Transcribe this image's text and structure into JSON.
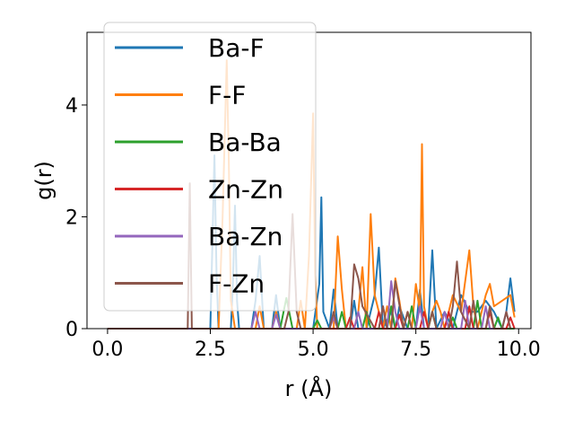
{
  "chart_data": {
    "type": "line",
    "xlabel": "r (Å)",
    "ylabel": "g(r)",
    "xlim": [
      -0.5,
      10.3
    ],
    "ylim": [
      0,
      5.3
    ],
    "xticks": [
      0.0,
      2.5,
      5.0,
      7.5,
      10.0
    ],
    "xtick_labels": [
      "0.0",
      "2.5",
      "5.0",
      "7.5",
      "10.0"
    ],
    "yticks": [
      0,
      2,
      4
    ],
    "ytick_labels": [
      "0",
      "2",
      "4"
    ],
    "grid": false,
    "legend_position": "top-left",
    "series": [
      {
        "name": "Ba-F",
        "color": "#1f77b4",
        "x": [
          0,
          2.5,
          2.55,
          2.6,
          2.65,
          2.7,
          2.75,
          2.8,
          2.85,
          2.9,
          3.0,
          3.05,
          3.1,
          3.15,
          3.2,
          3.5,
          3.6,
          3.7,
          3.8,
          4.0,
          4.1,
          4.2,
          4.8,
          5.0,
          5.15,
          5.2,
          5.25,
          5.4,
          5.5,
          5.6,
          5.9,
          6.0,
          6.1,
          6.3,
          6.5,
          6.6,
          6.7,
          6.9,
          7.0,
          7.1,
          7.3,
          7.5,
          7.6,
          7.7,
          7.8,
          7.9,
          8.0,
          8.2,
          8.4,
          8.6,
          8.8,
          9.0,
          9.2,
          9.4,
          9.6,
          9.7,
          9.8,
          9.9
        ],
        "y": [
          0,
          0,
          1.5,
          3.1,
          1.0,
          0,
          0,
          0,
          0,
          0,
          0,
          0.8,
          2.2,
          0.5,
          0,
          0,
          0.5,
          1.3,
          0,
          0,
          0.6,
          0,
          0,
          0,
          0.8,
          2.35,
          0.3,
          0,
          0.7,
          0,
          0,
          0.5,
          0,
          0,
          0.6,
          1.45,
          0,
          0.3,
          0,
          0.4,
          0,
          0,
          0.7,
          0,
          0,
          1.4,
          0,
          0.3,
          0,
          0.6,
          0.3,
          0.3,
          0.5,
          0.3,
          0,
          0.3,
          0.9,
          0.3
        ]
      },
      {
        "name": "F-F",
        "color": "#ff7f0e",
        "x": [
          0,
          2.6,
          2.7,
          2.8,
          2.9,
          2.95,
          3.0,
          3.1,
          3.2,
          3.6,
          3.7,
          3.8,
          4.0,
          4.1,
          4.2,
          4.5,
          4.6,
          4.7,
          4.8,
          4.9,
          5.0,
          5.05,
          5.1,
          5.3,
          5.5,
          5.6,
          5.7,
          5.8,
          6.0,
          6.1,
          6.2,
          6.3,
          6.4,
          6.5,
          6.6,
          6.7,
          6.8,
          6.9,
          7.0,
          7.1,
          7.2,
          7.3,
          7.4,
          7.5,
          7.6,
          7.65,
          7.7,
          7.8,
          7.9,
          8.0,
          8.1,
          8.2,
          8.4,
          8.6,
          8.8,
          8.9,
          9.0,
          9.2,
          9.3,
          9.4,
          9.6,
          9.8,
          9.9
        ],
        "y": [
          0,
          0,
          0,
          2.0,
          4.8,
          3.0,
          0.5,
          0,
          0,
          0,
          0.4,
          0,
          0,
          0.3,
          0,
          0,
          0,
          0.5,
          0,
          1.3,
          3.85,
          1.0,
          0,
          0,
          0,
          1.65,
          0.7,
          0,
          0,
          0.3,
          1.1,
          0,
          2.05,
          0.6,
          0.3,
          0,
          0.4,
          0,
          0.9,
          0.5,
          0,
          0.3,
          0,
          0.8,
          0.3,
          3.3,
          0.4,
          0,
          0.3,
          0.5,
          0.3,
          0,
          0.6,
          0.3,
          1.4,
          0.4,
          0,
          0.6,
          0.8,
          0.4,
          0.5,
          0.6,
          0.2
        ]
      },
      {
        "name": "Ba-Ba",
        "color": "#2ca02c",
        "x": [
          0,
          4.2,
          4.35,
          4.5,
          5.0,
          5.1,
          5.2,
          5.6,
          5.7,
          5.8,
          6.2,
          6.3,
          6.4,
          6.8,
          6.9,
          7.0,
          7.3,
          7.4,
          7.5,
          7.8,
          7.9,
          8.0,
          8.3,
          8.4,
          8.5,
          8.9,
          9.0,
          9.1,
          9.4,
          9.5,
          9.6,
          9.9
        ],
        "y": [
          0,
          0,
          0.55,
          0,
          0,
          0.15,
          0,
          0,
          0.3,
          0,
          0,
          0.3,
          0,
          0,
          0.4,
          0,
          0,
          0.4,
          0,
          0,
          0.3,
          0,
          0,
          0.2,
          0,
          0,
          0.5,
          0,
          0,
          0.2,
          0,
          0
        ]
      },
      {
        "name": "Zn-Zn",
        "color": "#d62728",
        "x": [
          0,
          5.8,
          5.9,
          6.0,
          6.5,
          6.6,
          6.7,
          7.0,
          7.1,
          7.2,
          7.6,
          7.7,
          7.8,
          8.2,
          8.3,
          8.4,
          8.7,
          8.8,
          8.9,
          9.2,
          9.3,
          9.4,
          9.7,
          9.8,
          9.9
        ],
        "y": [
          0,
          0,
          0.2,
          0,
          0,
          0.3,
          0,
          0,
          0.25,
          0,
          0,
          0.3,
          0,
          0,
          0.3,
          0,
          0,
          0.4,
          0,
          0,
          0.3,
          0,
          0,
          0.2,
          0
        ]
      },
      {
        "name": "Ba-Zn",
        "color": "#9467bd",
        "x": [
          0,
          3.5,
          3.6,
          3.7,
          4.0,
          4.1,
          4.2,
          5.4,
          5.5,
          5.6,
          6.0,
          6.1,
          6.2,
          6.6,
          6.7,
          6.8,
          6.9,
          7.0,
          7.1,
          7.5,
          7.6,
          7.7,
          8.1,
          8.2,
          8.3,
          8.6,
          8.7,
          8.8,
          9.1,
          9.2,
          9.3,
          9.6,
          9.7,
          9.8
        ],
        "y": [
          0,
          0,
          0.3,
          0,
          0,
          0.25,
          0,
          0,
          0.2,
          0,
          0,
          0.3,
          0,
          0,
          0.4,
          0,
          0.85,
          0.3,
          0,
          0,
          0.4,
          0,
          0,
          0.3,
          0,
          0,
          0.5,
          0,
          0,
          0.4,
          0,
          0,
          0.3,
          0
        ]
      },
      {
        "name": "F-Zn",
        "color": "#8c564b",
        "x": [
          0,
          1.8,
          1.95,
          2.0,
          2.05,
          2.2,
          4.3,
          4.4,
          4.5,
          4.6,
          4.7,
          5.4,
          5.5,
          5.6,
          5.8,
          5.9,
          6.0,
          6.1,
          6.2,
          6.5,
          6.6,
          6.7,
          6.8,
          6.9,
          7.0,
          7.2,
          7.3,
          7.4,
          7.8,
          7.9,
          8.0,
          8.3,
          8.4,
          8.5,
          8.6,
          8.8,
          8.9,
          9.0,
          9.2,
          9.3,
          9.4,
          9.6,
          9.7,
          9.8
        ],
        "y": [
          0,
          0,
          0,
          2.6,
          0,
          0,
          0,
          0.3,
          2.05,
          0.3,
          0,
          0,
          0.3,
          0,
          0,
          0,
          1.15,
          0.9,
          0.4,
          0,
          0,
          0.4,
          0,
          0,
          0.85,
          0,
          0.3,
          0,
          0,
          0.3,
          0,
          0,
          0.4,
          1.2,
          0.3,
          0,
          0.5,
          0,
          0,
          0.4,
          0,
          0,
          0.3,
          0
        ]
      }
    ]
  }
}
